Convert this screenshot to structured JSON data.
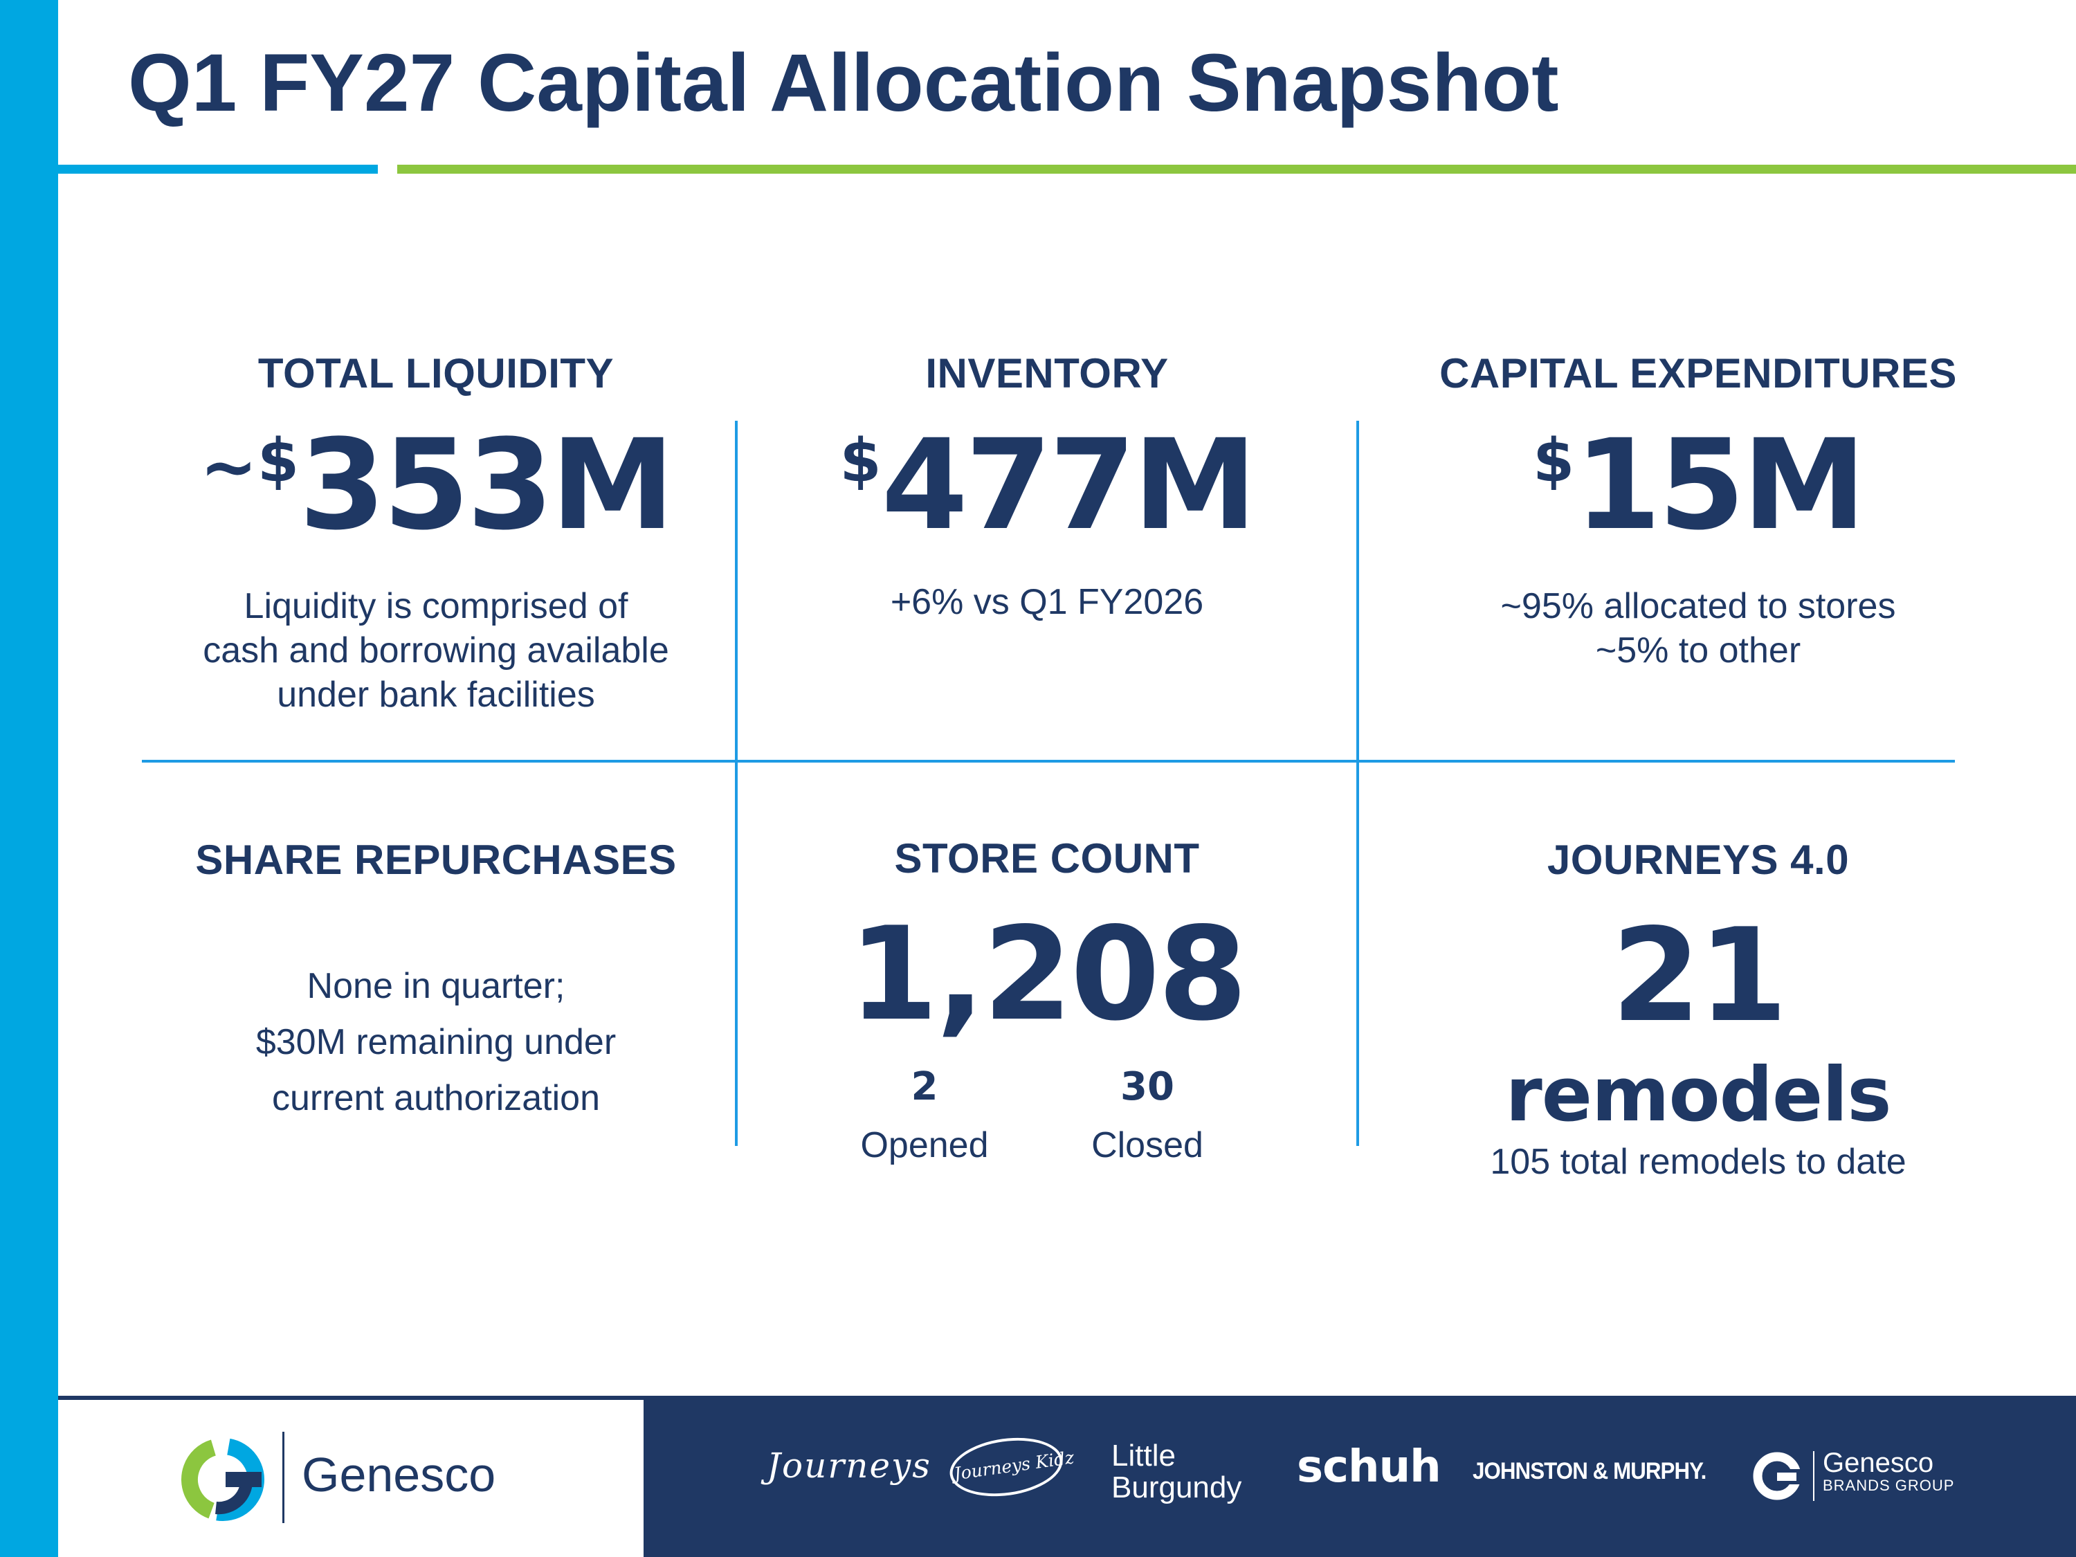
{
  "title": "Q1 FY27 Capital Allocation Snapshot",
  "colors": {
    "navy": "#1f3864",
    "sky_blue": "#00a7e1",
    "green": "#8cc63f",
    "divider_blue": "#1e9be4"
  },
  "liquidity": {
    "label": "TOTAL LIQUIDITY",
    "tilde": "~",
    "currency": "$",
    "value": "353M",
    "desc": [
      "Liquidity is comprised of",
      "cash and borrowing available",
      "under bank facilities"
    ]
  },
  "inventory": {
    "label": "INVENTORY",
    "currency": "$",
    "value": "477M",
    "desc": "+6% vs Q1 FY2026"
  },
  "capex": {
    "label": "CAPITAL EXPENDITURES",
    "currency": "$",
    "value": "15M",
    "desc": [
      "~95% allocated to stores",
      "~5% to other"
    ]
  },
  "repurchases": {
    "label": "SHARE REPURCHASES",
    "desc": [
      "None in quarter;",
      "$30M remaining under",
      "current authorization"
    ]
  },
  "store_count": {
    "label": "STORE COUNT",
    "value": "1,208",
    "opened_value": "2",
    "opened_label": "Opened",
    "closed_value": "30",
    "closed_label": "Closed"
  },
  "journeys": {
    "label": "JOURNEYS 4.0",
    "value": "21",
    "unit": "remodels",
    "desc": "105 total remodels to date"
  },
  "footer": {
    "company_logo": {
      "name": "Genesco",
      "icon": "genesco-g-icon"
    },
    "brands": [
      {
        "name": "Journeys",
        "icon": "journeys-logo"
      },
      {
        "name": "Journeys Kidz",
        "icon": "journeys-kidz-logo"
      },
      {
        "name": "Little Burgundy",
        "icon": "little-burgundy-logo"
      },
      {
        "name": "schuh",
        "icon": "schuh-logo"
      },
      {
        "name": "JOHNSTON & MURPHY.",
        "icon": "johnston-murphy-logo"
      },
      {
        "name": "Genesco",
        "tagline": "BRANDS GROUP",
        "icon": "genesco-brands-group-logo"
      }
    ]
  }
}
